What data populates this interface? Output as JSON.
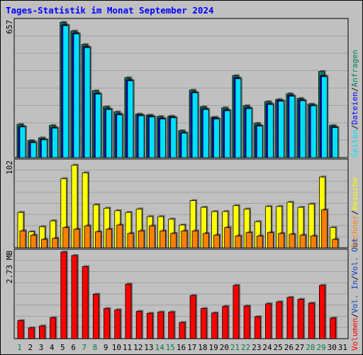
{
  "title": "Tages-Statistik im Monat September 2024",
  "colors": {
    "page_bg": "#C0C0C0",
    "title": "#0000FF",
    "grid": "#A0A0A0",
    "weekend_label": "#008040",
    "day_label": "#000000",
    "hits": "#00805C",
    "files": "#0000FF",
    "pages": "#00E0FF",
    "visits": "#FFFF00",
    "sites": "#FF8000",
    "kbytes": "#FF0000",
    "kbytes_in": "#0040C0",
    "kbytes_out": "#0040C0",
    "separator": "#000000"
  },
  "right_labels": {
    "top": [
      {
        "text": "Seiten",
        "color": "#00E0FF"
      },
      {
        "text": "/",
        "color": "#000000"
      },
      {
        "text": "Dateien",
        "color": "#0000FF"
      },
      {
        "text": "/",
        "color": "#000000"
      },
      {
        "text": "Anfragen",
        "color": "#00805C"
      }
    ],
    "middle": [
      {
        "text": "Rechner",
        "color": "#FF8000"
      },
      {
        "text": "/",
        "color": "#000000"
      },
      {
        "text": "Besuche",
        "color": "#FFFF00"
      }
    ],
    "bottom": [
      {
        "text": "Volumen",
        "color": "#FF0000"
      },
      {
        "text": "/",
        "color": "#000000"
      },
      {
        "text": "Vol. In",
        "color": "#0040C0"
      },
      {
        "text": "/",
        "color": "#000000"
      },
      {
        "text": "Vol. Out",
        "color": "#0040C0"
      }
    ]
  },
  "chart_data": [
    {
      "type": "bar",
      "panel": "top",
      "ylabel": "657",
      "ylim": [
        0,
        657
      ],
      "categories": [
        "1",
        "2",
        "3",
        "4",
        "5",
        "6",
        "7",
        "8",
        "9",
        "10",
        "11",
        "12",
        "13",
        "14",
        "15",
        "16",
        "17",
        "18",
        "19",
        "20",
        "21",
        "22",
        "23",
        "24",
        "25",
        "26",
        "27",
        "28",
        "29",
        "30",
        "31"
      ],
      "weekend_days": [
        "1",
        "7",
        "8",
        "14",
        "15",
        "21",
        "22",
        "28",
        "29"
      ],
      "series": [
        {
          "name": "Anfragen",
          "values": [
            160,
            82,
            95,
            155,
            652,
            610,
            545,
            322,
            245,
            220,
            385,
            210,
            205,
            198,
            200,
            130,
            325,
            245,
            195,
            240,
            395,
            250,
            165,
            270,
            280,
            308,
            285,
            258,
            415,
            155,
            0
          ]
        },
        {
          "name": "Dateien",
          "values": [
            150,
            75,
            88,
            145,
            640,
            600,
            535,
            310,
            235,
            210,
            375,
            205,
            200,
            190,
            195,
            120,
            315,
            235,
            190,
            230,
            385,
            240,
            155,
            260,
            275,
            300,
            278,
            252,
            395,
            148,
            0
          ]
        },
        {
          "name": "Seiten",
          "values": [
            148,
            72,
            86,
            142,
            636,
            596,
            530,
            306,
            232,
            206,
            370,
            202,
            196,
            186,
            192,
            118,
            312,
            232,
            186,
            226,
            380,
            236,
            152,
            256,
            272,
            296,
            274,
            250,
            390,
            145,
            0
          ]
        }
      ]
    },
    {
      "type": "bar",
      "panel": "middle",
      "ylabel": "102",
      "ylim": [
        0,
        102
      ],
      "categories": [
        "1",
        "2",
        "3",
        "4",
        "5",
        "6",
        "7",
        "8",
        "9",
        "10",
        "11",
        "12",
        "13",
        "14",
        "15",
        "16",
        "17",
        "18",
        "19",
        "20",
        "21",
        "22",
        "23",
        "24",
        "25",
        "26",
        "27",
        "28",
        "29",
        "30",
        "31"
      ],
      "series": [
        {
          "name": "Besuche",
          "values": [
            42,
            19,
            25,
            32,
            82,
            98,
            89,
            51,
            47,
            44,
            42,
            46,
            37,
            37,
            34,
            27,
            56,
            48,
            43,
            43,
            50,
            46,
            31,
            49,
            49,
            54,
            48,
            52,
            84,
            24,
            0
          ]
        },
        {
          "name": "Rechner",
          "values": [
            20,
            15,
            10,
            11,
            24,
            22,
            26,
            19,
            22,
            27,
            17,
            20,
            26,
            20,
            17,
            20,
            20,
            17,
            15,
            24,
            14,
            18,
            14,
            18,
            17,
            16,
            15,
            14,
            45,
            10,
            0
          ]
        }
      ]
    },
    {
      "type": "bar",
      "panel": "bottom",
      "ylabel": "2.73 MB",
      "ylim": [
        0,
        2.73
      ],
      "categories": [
        "1",
        "2",
        "3",
        "4",
        "5",
        "6",
        "7",
        "8",
        "9",
        "10",
        "11",
        "12",
        "13",
        "14",
        "15",
        "16",
        "17",
        "18",
        "19",
        "20",
        "21",
        "22",
        "23",
        "24",
        "25",
        "26",
        "27",
        "28",
        "29",
        "30",
        "31"
      ],
      "series": [
        {
          "name": "Volumen",
          "values": [
            0.57,
            0.34,
            0.4,
            0.66,
            2.73,
            2.62,
            2.27,
            1.4,
            0.95,
            0.91,
            1.72,
            0.86,
            0.8,
            0.84,
            0.84,
            0.51,
            1.36,
            0.95,
            0.81,
            1.02,
            1.68,
            1.03,
            0.69,
            1.1,
            1.16,
            1.3,
            1.24,
            1.12,
            1.68,
            0.65,
            0
          ]
        }
      ]
    }
  ]
}
